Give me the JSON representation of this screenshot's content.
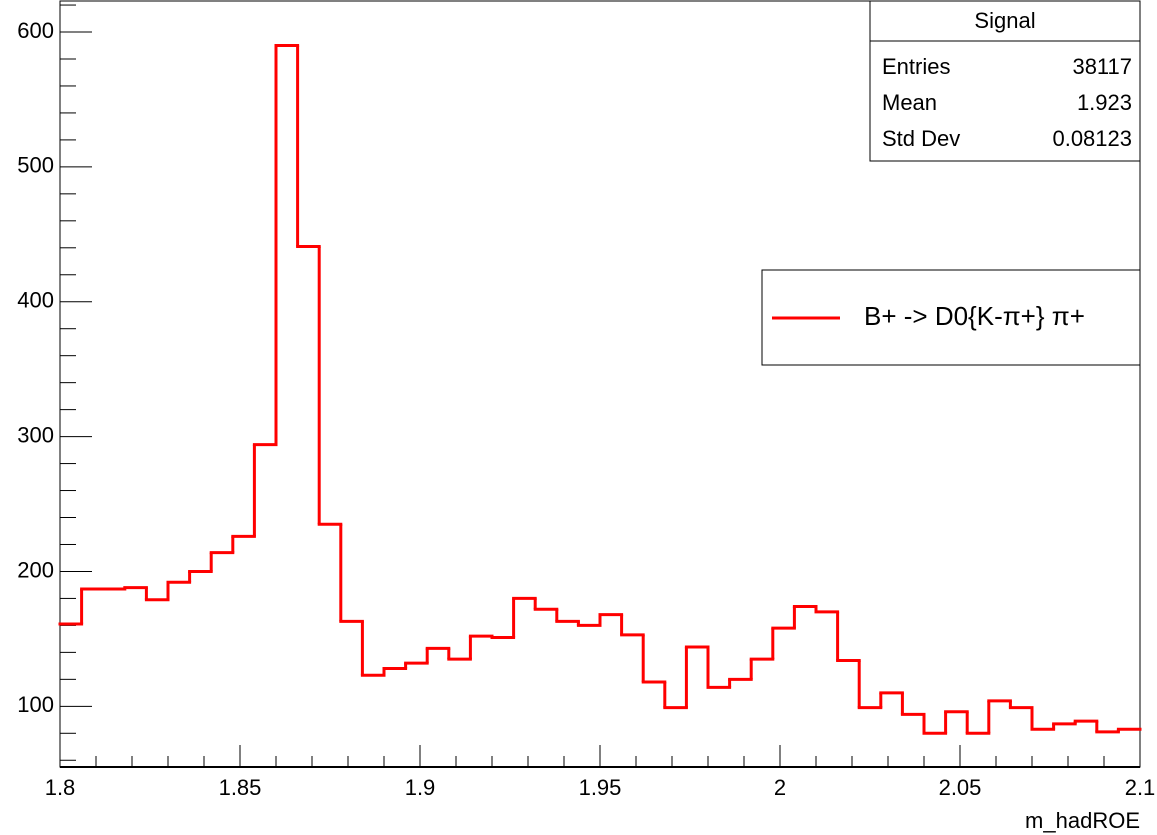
{
  "chart_data": {
    "type": "histogram",
    "x_label": "m_hadROE",
    "bins": [
      1.8,
      1.806,
      1.812,
      1.818,
      1.824,
      1.83,
      1.836,
      1.842,
      1.848,
      1.854,
      1.86,
      1.866,
      1.872,
      1.878,
      1.884,
      1.89,
      1.896,
      1.902,
      1.908,
      1.914,
      1.92,
      1.926,
      1.932,
      1.938,
      1.944,
      1.95,
      1.956,
      1.962,
      1.968,
      1.974,
      1.98,
      1.986,
      1.992,
      1.998,
      2.004,
      2.01,
      2.016,
      2.022,
      2.028,
      2.034,
      2.04,
      2.046,
      2.052,
      2.058,
      2.064,
      2.07,
      2.076,
      2.082,
      2.088,
      2.094,
      2.1
    ],
    "series": [
      {
        "name": "B+ -> D0{K-π+} π+",
        "color": "#ff0000",
        "values": [
          161,
          187,
          187,
          188,
          179,
          192,
          200,
          214,
          226,
          294,
          590,
          441,
          235,
          163,
          123,
          128,
          132,
          143,
          135,
          152,
          151,
          180,
          172,
          163,
          160,
          168,
          153,
          118,
          99,
          144,
          114,
          120,
          135,
          158,
          174,
          170,
          134,
          99,
          110,
          94,
          80,
          96,
          80,
          104,
          99,
          83,
          87,
          89,
          81,
          83
        ]
      }
    ],
    "xlim": [
      1.8,
      2.1
    ],
    "xticks": [
      1.8,
      1.85,
      1.9,
      1.95,
      2,
      2.05,
      2.1
    ],
    "ylim": [
      55,
      623
    ],
    "yticks": [
      100,
      200,
      300,
      400,
      500,
      600
    ],
    "stats": {
      "title": "Signal",
      "rows": [
        {
          "label": "Entries",
          "value": 38117
        },
        {
          "label": "Mean",
          "value": 1.923
        },
        {
          "label": "Std Dev",
          "value": 0.08123
        }
      ]
    }
  }
}
